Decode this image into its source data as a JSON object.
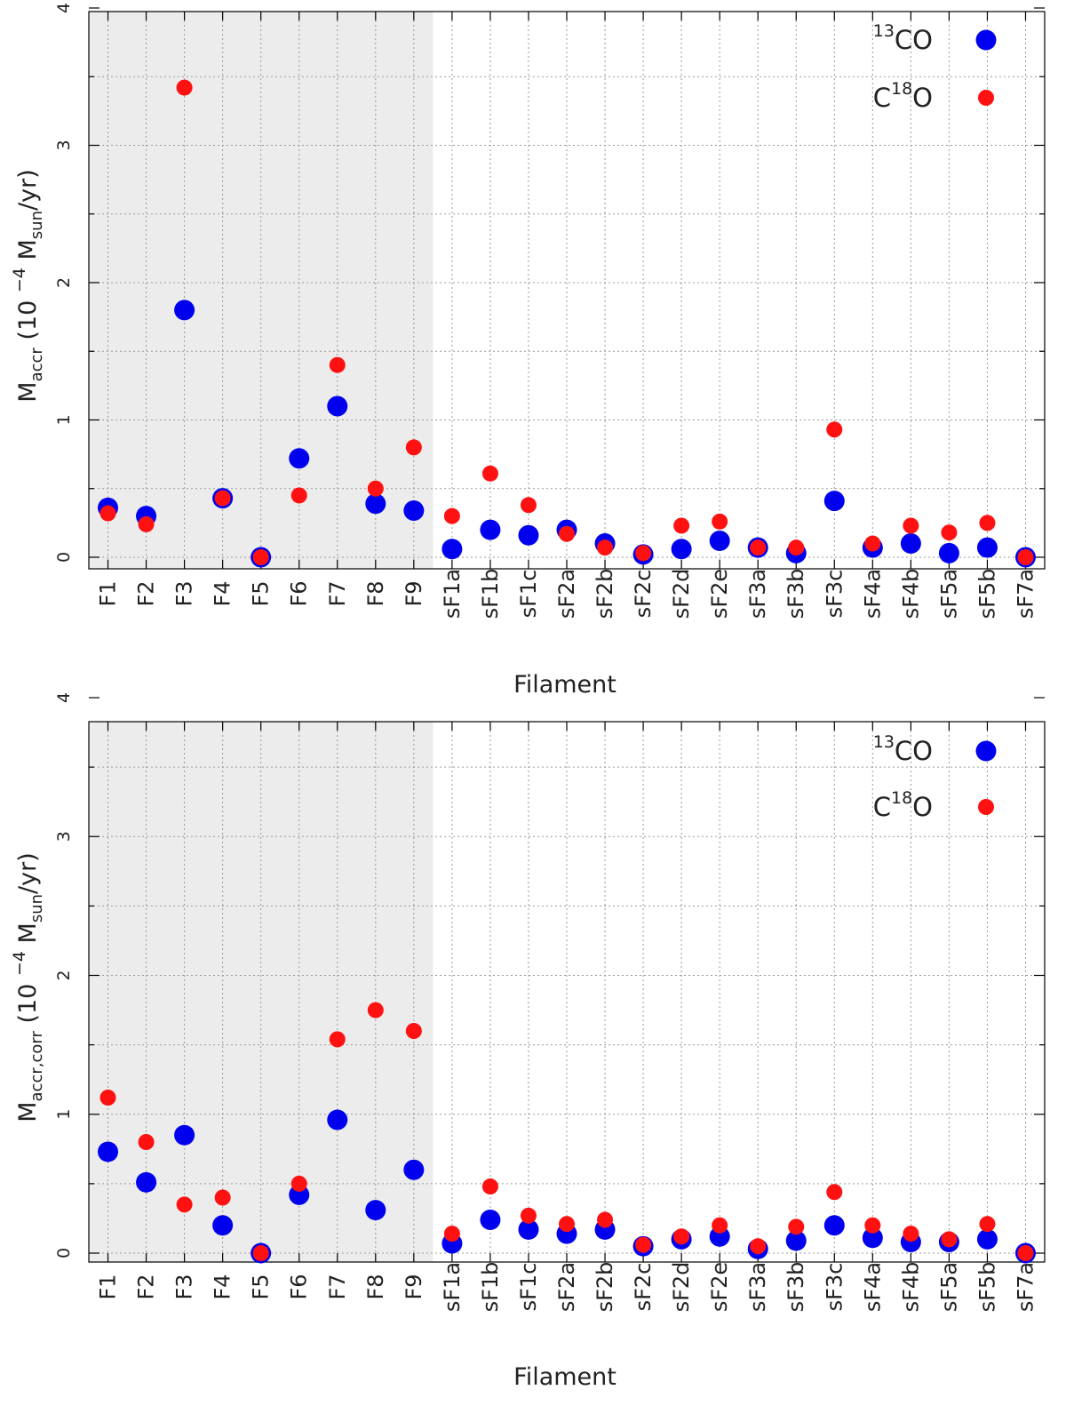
{
  "chart_data": [
    {
      "type": "scatter",
      "ylabel": {
        "symbol": "M",
        "sub": "accr",
        "unit_open": "(10",
        "exp": "−4",
        "unit_mid": " M",
        "unit_sub": "sun",
        "unit_close": "/yr)"
      },
      "xlabel": "Filament",
      "ylim": [
        -0.1,
        4.0
      ],
      "yticks": [
        "0",
        "1",
        "2",
        "3",
        "4"
      ],
      "grid": true,
      "shaded_categories": [
        "F1",
        "F2",
        "F3",
        "F4",
        "F5",
        "F6",
        "F7",
        "F8",
        "F9"
      ],
      "shade_color": "#ececec",
      "legend_position": "top-right",
      "categories": [
        "F1",
        "F2",
        "F3",
        "F4",
        "F5",
        "F6",
        "F7",
        "F8",
        "F9",
        "sF1a",
        "sF1b",
        "sF1c",
        "sF2a",
        "sF2b",
        "sF2c",
        "sF2d",
        "sF2e",
        "sF3a",
        "sF3b",
        "sF3c",
        "sF4a",
        "sF4b",
        "sF5a",
        "sF5b",
        "sF7a"
      ],
      "series": [
        {
          "name": "13CO",
          "label_sup": "13",
          "label_text": "CO",
          "label_prefix": "",
          "color": "#0000ee",
          "marker": "large-circle",
          "values": [
            0.36,
            0.3,
            1.8,
            0.43,
            0.0,
            0.72,
            1.1,
            0.39,
            0.34,
            0.06,
            0.2,
            0.16,
            0.2,
            0.1,
            0.02,
            0.06,
            0.12,
            0.07,
            0.03,
            0.41,
            0.07,
            0.1,
            0.03,
            0.07,
            0.0
          ]
        },
        {
          "name": "C18O",
          "label_sup": "18",
          "label_text": "O",
          "label_prefix": "C",
          "color": "#ff1111",
          "marker": "small-circle",
          "values": [
            0.32,
            0.24,
            3.42,
            0.43,
            0.0,
            0.45,
            1.4,
            0.5,
            0.8,
            0.3,
            0.61,
            0.38,
            0.17,
            0.07,
            0.03,
            0.23,
            0.26,
            0.07,
            0.07,
            0.93,
            0.1,
            0.23,
            0.18,
            0.25,
            0.0
          ]
        }
      ]
    },
    {
      "type": "scatter",
      "ylabel": {
        "symbol": "M",
        "sub": "accr,corr",
        "unit_open": "(10",
        "exp": "−4",
        "unit_mid": " M",
        "unit_sub": "sun",
        "unit_close": "/yr)"
      },
      "xlabel": "Filament",
      "ylim": [
        -0.1,
        4.0
      ],
      "yticks": [
        "0",
        "1",
        "2",
        "3",
        "4"
      ],
      "grid": true,
      "shaded_categories": [
        "F1",
        "F2",
        "F3",
        "F4",
        "F5",
        "F6",
        "F7",
        "F8",
        "F9"
      ],
      "shade_color": "#ececec",
      "legend_position": "top-right",
      "categories": [
        "F1",
        "F2",
        "F3",
        "F4",
        "F5",
        "F6",
        "F7",
        "F8",
        "F9",
        "sF1a",
        "sF1b",
        "sF1c",
        "sF2a",
        "sF2b",
        "sF2c",
        "sF2d",
        "sF2e",
        "sF3a",
        "sF3b",
        "sF3c",
        "sF4a",
        "sF4b",
        "sF5a",
        "sF5b",
        "sF7a"
      ],
      "series": [
        {
          "name": "13CO",
          "label_sup": "13",
          "label_text": "CO",
          "label_prefix": "",
          "color": "#0000ee",
          "marker": "large-circle",
          "values": [
            0.73,
            0.51,
            0.85,
            0.2,
            0.0,
            0.42,
            0.96,
            0.31,
            0.6,
            0.07,
            0.24,
            0.17,
            0.14,
            0.17,
            0.05,
            0.1,
            0.12,
            0.03,
            0.09,
            0.2,
            0.11,
            0.08,
            0.08,
            0.1,
            0.0
          ]
        },
        {
          "name": "C18O",
          "label_sup": "18",
          "label_text": "O",
          "label_prefix": "C",
          "color": "#ff1111",
          "marker": "small-circle",
          "values": [
            1.12,
            0.8,
            0.35,
            0.4,
            0.0,
            0.5,
            1.54,
            1.75,
            1.6,
            0.14,
            0.48,
            0.27,
            0.21,
            0.24,
            0.06,
            0.12,
            0.2,
            0.05,
            0.19,
            0.44,
            0.2,
            0.14,
            0.1,
            0.21,
            0.0
          ]
        }
      ]
    }
  ]
}
